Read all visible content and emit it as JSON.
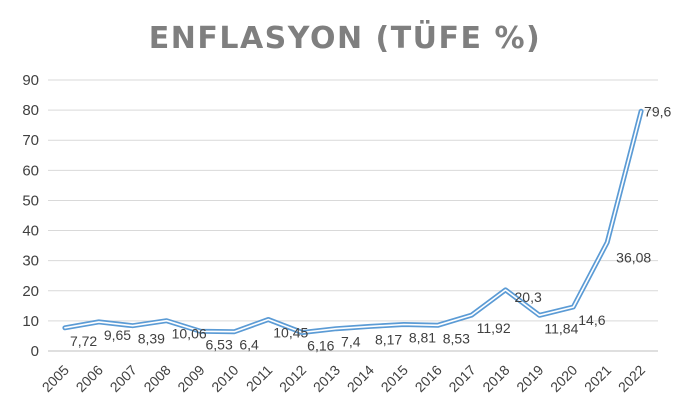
{
  "chart_data": {
    "type": "line",
    "title": "ENFLASYON (TÜFE %)",
    "xlabel": "",
    "ylabel": "",
    "categories": [
      "2005",
      "2006",
      "2007",
      "2008",
      "2009",
      "2010",
      "2011",
      "2012",
      "2013",
      "2014",
      "2015",
      "2016",
      "2017",
      "2018",
      "2019",
      "2020",
      "2021",
      "2022"
    ],
    "y_ticks": [
      "0",
      "10",
      "20",
      "30",
      "40",
      "50",
      "60",
      "70",
      "80",
      "90"
    ],
    "ylim": [
      0,
      90
    ],
    "grid": true,
    "legend": "none",
    "series": [
      {
        "values": [
          7.72,
          9.65,
          8.39,
          10.06,
          6.53,
          6.4,
          10.45,
          6.16,
          7.4,
          8.17,
          8.81,
          8.53,
          11.92,
          20.3,
          11.84,
          14.6,
          36.08,
          79.6
        ],
        "labels": [
          "7,72",
          "9,65",
          "8,39",
          "10,06",
          "6,53",
          "6,4",
          "10,45",
          "6,16",
          "7,4",
          "8,17",
          "8,81",
          "8,53",
          "11,92",
          "20,3",
          "11,84",
          "14,6",
          "36,08",
          "79,6"
        ]
      }
    ],
    "colors": {
      "line": "#5b9bd5",
      "line_inner": "#ffffff"
    }
  }
}
